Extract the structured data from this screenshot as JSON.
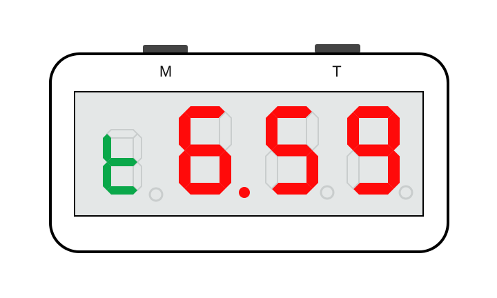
{
  "buttons": [
    {
      "label": "M",
      "icon": "mode-button"
    },
    {
      "label": "T",
      "icon": "time-button"
    }
  ],
  "display": {
    "digits": [
      {
        "char": "t",
        "color": "#0aa84a",
        "decimal_point_on": false
      },
      {
        "char": "6",
        "color": "#ff0a0a",
        "decimal_point_on": true
      },
      {
        "char": "5",
        "color": "#ff0a0a",
        "decimal_point_on": false
      },
      {
        "char": "9",
        "color": "#ff0a0a",
        "decimal_point_on": false
      }
    ],
    "inactive_segment_color": "#c9cdcd",
    "background_color": "#e4e7e7"
  }
}
